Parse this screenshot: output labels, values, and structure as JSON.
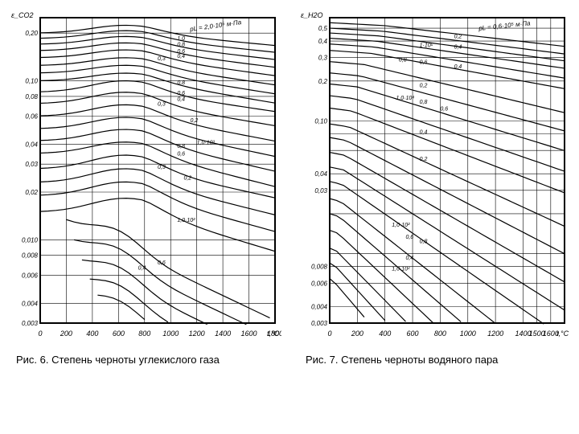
{
  "chart6": {
    "caption": "Рис. 6. Степень черноты углекислого газа",
    "yaxis_label": "ε_CO2",
    "xaxis_label": "t,°C",
    "paramLabel": "pL = 2,0·10⁵ м·Па",
    "x_ticks": [
      "0",
      "200",
      "400",
      "600",
      "800",
      "1000",
      "1200",
      "1400",
      "1600",
      "1800"
    ],
    "y_ticks": [
      {
        "v": 0.2,
        "l": "0,20"
      },
      {
        "v": 0.1,
        "l": "0,10"
      },
      {
        "v": 0.08,
        "l": "0,08"
      },
      {
        "v": 0.06,
        "l": "0,06"
      },
      {
        "v": 0.04,
        "l": "0,04"
      },
      {
        "v": 0.03,
        "l": "0,03"
      },
      {
        "v": 0.02,
        "l": "0,02"
      },
      {
        "v": 0.01,
        "l": "0,010"
      },
      {
        "v": 0.008,
        "l": "0,008"
      },
      {
        "v": 0.006,
        "l": "0,006"
      },
      {
        "v": 0.004,
        "l": "0,004"
      },
      {
        "v": 0.003,
        "l": "0,003"
      }
    ],
    "curveLabels": [
      "1,0",
      "0,8",
      "0,6",
      "0,3",
      "0,4",
      "0,8",
      "0,6",
      "0,3",
      "0,4",
      "0,2",
      "0,8",
      "1,0·10³",
      "0,6",
      "0,3",
      "0,2",
      "1,0·10²",
      "0,4",
      "0,6"
    ],
    "colors": {
      "line": "#000000",
      "grid": "#000000",
      "bg": "#ffffff"
    }
  },
  "chart7": {
    "caption": "Рис. 7. Степень черноты водяного пара",
    "yaxis_label": "ε_H2O",
    "xaxis_label": "t,°C",
    "paramLabel": "pL = 0,6·10⁵ м·Па",
    "x_ticks": [
      "0",
      "200",
      "400",
      "600",
      "800",
      "1000",
      "1200",
      "1400",
      "1500",
      "1600"
    ],
    "y_ticks": [
      {
        "v": 0.5,
        "l": "0,5"
      },
      {
        "v": 0.4,
        "l": "0,4"
      },
      {
        "v": 0.3,
        "l": "0,3"
      },
      {
        "v": 0.2,
        "l": "0,2"
      },
      {
        "v": 0.1,
        "l": "0,10"
      },
      {
        "v": 0.08,
        "l": ""
      },
      {
        "v": 0.06,
        "l": ""
      },
      {
        "v": 0.04,
        "l": "0,04"
      },
      {
        "v": 0.03,
        "l": "0,03"
      },
      {
        "v": 0.02,
        "l": ""
      },
      {
        "v": 0.01,
        "l": ""
      },
      {
        "v": 0.008,
        "l": "0,008"
      },
      {
        "v": 0.006,
        "l": "0,006"
      },
      {
        "v": 0.004,
        "l": "0,004"
      },
      {
        "v": 0.003,
        "l": "0,003"
      }
    ],
    "curveLabels": [
      "0,2",
      "1·10⁵",
      "0,4",
      "0,8",
      "0,6",
      "0,4",
      "0,2",
      "1,0·10⁴",
      "0,8",
      "0,6",
      "0,4",
      "0,2",
      "1,0·10²",
      "0,6",
      "0,8",
      "0,4",
      "1,0·10²"
    ],
    "colors": {
      "line": "#000000",
      "grid": "#000000",
      "bg": "#ffffff"
    }
  }
}
